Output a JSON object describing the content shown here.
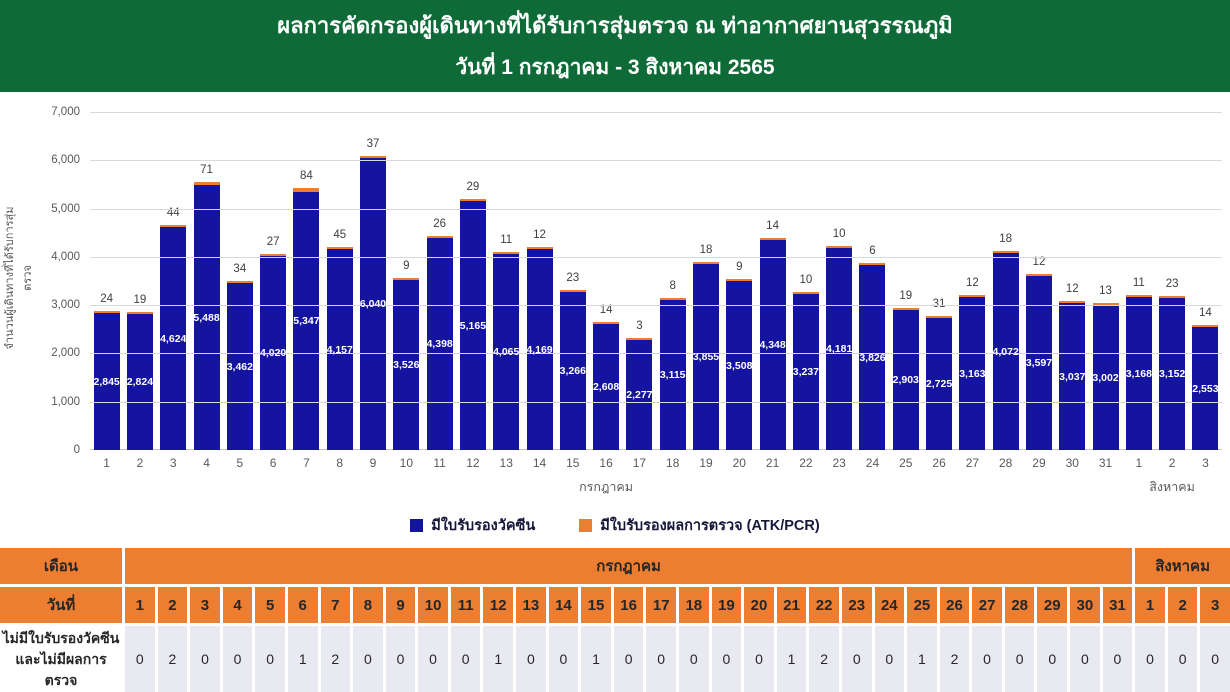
{
  "header": {
    "title_line1": "ผลการคัดกรองผู้เดินทางที่ได้รับการสุ่มตรวจ ณ ท่าอากาศยานสุวรรณภูมิ",
    "title_line2": "วันที่ 1 กรกฎาคม - 3 สิงหาคม 2565",
    "bg_color": "#0E6B38"
  },
  "chart_data": {
    "type": "bar",
    "stacked": true,
    "ylabel": "จำนวนผู้เดินทางที่ได้รับการสุ่มตรวจ",
    "ylim": [
      0,
      7000
    ],
    "ytick_labels": [
      "0",
      "1,000",
      "2,000",
      "3,000",
      "4,000",
      "5,000",
      "6,000",
      "7,000"
    ],
    "grid": true,
    "legend_position": "bottom",
    "categories": [
      "1",
      "2",
      "3",
      "4",
      "5",
      "6",
      "7",
      "8",
      "9",
      "10",
      "11",
      "12",
      "13",
      "14",
      "15",
      "16",
      "17",
      "18",
      "19",
      "20",
      "21",
      "22",
      "23",
      "24",
      "25",
      "26",
      "27",
      "28",
      "29",
      "30",
      "31",
      "1",
      "2",
      "3"
    ],
    "month_groups": [
      {
        "label": "กรกฎาคม",
        "start": 0,
        "count": 31
      },
      {
        "label": "สิงหาคม",
        "start": 31,
        "count": 3
      }
    ],
    "series": [
      {
        "name": "มีใบรับรองวัคซีน",
        "color": "#1414A0",
        "values": [
          2845,
          2824,
          4624,
          5488,
          3462,
          4020,
          5347,
          4157,
          6040,
          3526,
          4398,
          5165,
          4065,
          4169,
          3266,
          2608,
          2277,
          3115,
          3855,
          3508,
          4348,
          3237,
          4181,
          3826,
          2903,
          2725,
          3163,
          4072,
          3597,
          3037,
          3002,
          3168,
          3152,
          2553
        ]
      },
      {
        "name": "มีใบรับรองผลการตรวจ (ATK/PCR)",
        "color": "#ED7D31",
        "values": [
          24,
          19,
          44,
          71,
          34,
          27,
          84,
          45,
          37,
          9,
          26,
          29,
          11,
          12,
          23,
          14,
          3,
          8,
          18,
          9,
          14,
          10,
          10,
          6,
          19,
          31,
          12,
          18,
          12,
          12,
          13,
          11,
          23,
          14
        ]
      }
    ]
  },
  "table": {
    "month_row_label": "เดือน",
    "day_row_label": "วันที่",
    "data_row_label_line1": "ไม่มีใบรับรองวัคซีน",
    "data_row_label_line2": "และไม่มีผลการตรวจ",
    "months": [
      {
        "label": "กรกฎาคม",
        "span": 31
      },
      {
        "label": "สิงหาคม",
        "span": 3
      }
    ],
    "days": [
      "1",
      "2",
      "3",
      "4",
      "5",
      "6",
      "7",
      "8",
      "9",
      "10",
      "11",
      "12",
      "13",
      "14",
      "15",
      "16",
      "17",
      "18",
      "19",
      "20",
      "21",
      "22",
      "23",
      "24",
      "25",
      "26",
      "27",
      "28",
      "29",
      "30",
      "31",
      "1",
      "2",
      "3"
    ],
    "values": [
      0,
      2,
      0,
      0,
      0,
      1,
      2,
      0,
      0,
      0,
      0,
      1,
      0,
      0,
      1,
      0,
      0,
      0,
      0,
      0,
      1,
      2,
      0,
      0,
      1,
      2,
      0,
      0,
      0,
      0,
      0,
      0,
      0,
      0
    ]
  },
  "colors": {
    "header_green": "#0E6B38",
    "bar_blue": "#1414A0",
    "bar_orange": "#ED7D31",
    "gridline": "#D9D9D9",
    "axis_text": "#595959",
    "table_header_orange": "#ED7D31",
    "table_cell_bg": "#E9E9F2"
  }
}
